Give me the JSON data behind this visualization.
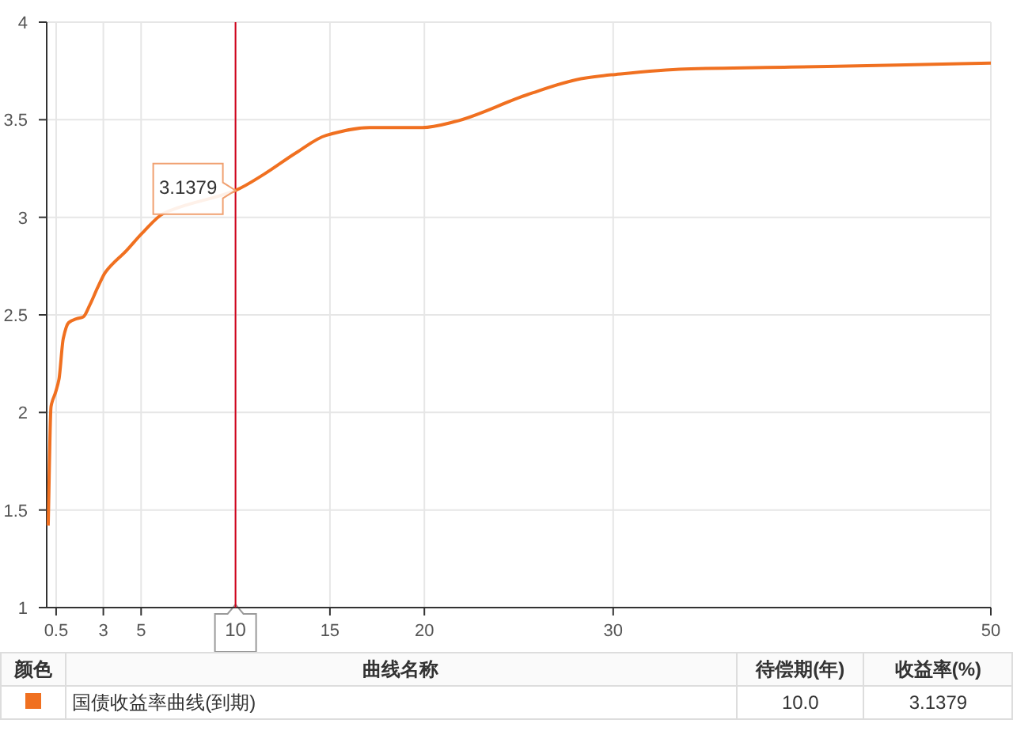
{
  "chart_data": {
    "type": "line",
    "x": [
      0.08,
      0.23,
      0.46,
      0.65,
      0.88,
      1.16,
      1.58,
      1.94,
      2.28,
      2.7,
      3.12,
      4.23,
      5.07,
      6.19,
      10,
      11.5,
      13.2,
      14.8,
      17.1,
      19.9,
      21.6,
      25.5,
      28.3,
      29.9,
      33.8,
      39.4,
      45,
      50
    ],
    "series": [
      {
        "name": "国债收益率曲线(到期)",
        "color": "#f07020",
        "values": [
          1.42,
          2.03,
          2.1,
          2.17,
          2.38,
          2.46,
          2.48,
          2.49,
          2.55,
          2.64,
          2.72,
          2.83,
          2.92,
          3.02,
          3.1379,
          3.22,
          3.33,
          3.42,
          3.46,
          3.46,
          3.49,
          3.63,
          3.71,
          3.73,
          3.76,
          3.77,
          3.78,
          3.79
        ]
      }
    ],
    "xlim": [
      0,
      50
    ],
    "xticks": [
      0.5,
      3,
      5,
      10,
      15,
      20,
      30,
      50
    ],
    "ylim": [
      1,
      4
    ],
    "yticks": [
      1,
      1.5,
      2,
      2.5,
      3,
      3.5,
      4
    ],
    "grid": true,
    "legend": "bottom",
    "marker": "none",
    "line_style": "solid",
    "ref_lines": [
      {
        "axis": "x",
        "value": 10,
        "color": "#d0021b"
      }
    ],
    "annotations": [
      {
        "text": "3.1379",
        "x": 10,
        "y": 3.1379
      },
      "颜色",
      "曲线名称",
      "待偿期(年)",
      "收益率(%)",
      "10.0",
      "3.1379"
    ]
  }
}
